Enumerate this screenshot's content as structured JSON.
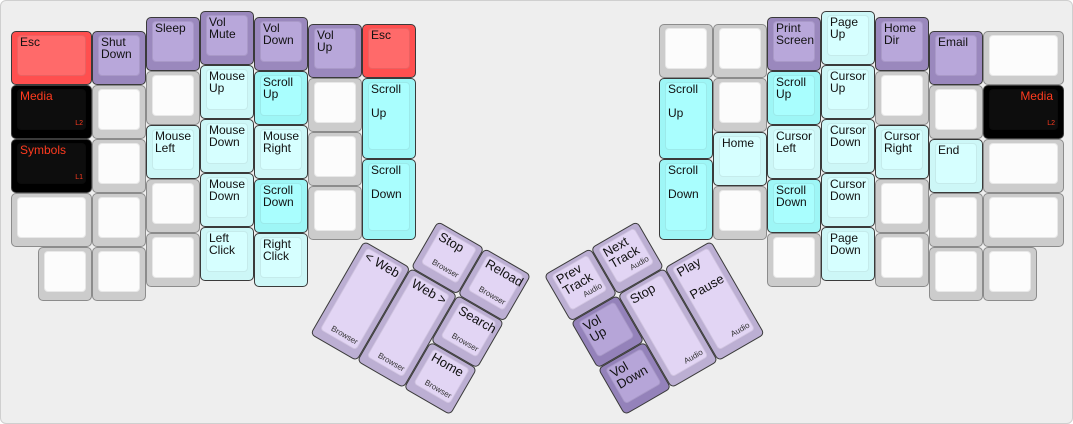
{
  "left_keys": [
    {
      "label": "Esc",
      "color": "red"
    },
    {
      "label": "Shut\nDown",
      "color": "purple"
    },
    {
      "label": "Sleep",
      "color": "purple"
    },
    {
      "label": "Vol\nMute",
      "color": "purple"
    },
    {
      "label": "Vol\nDown",
      "color": "purple"
    },
    {
      "label": "Vol\nUp",
      "color": "purple"
    },
    {
      "label": "Esc",
      "color": "red"
    },
    {
      "label": "Media",
      "sub": "L2",
      "color": "black"
    },
    {
      "label": "",
      "color": "blank"
    },
    {
      "label": "",
      "color": "blank"
    },
    {
      "label": "Mouse\nUp",
      "color": "lcyan"
    },
    {
      "label": "Scroll\nUp",
      "color": "cyan"
    },
    {
      "label": "",
      "color": "blank"
    },
    {
      "label": "Scroll\n\nUp",
      "color": "cyan"
    },
    {
      "label": "Symbols",
      "sub": "L1",
      "color": "black"
    },
    {
      "label": "",
      "color": "blank"
    },
    {
      "label": "Mouse\nLeft",
      "color": "lcyan"
    },
    {
      "label": "Mouse\nDown",
      "color": "lcyan"
    },
    {
      "label": "Mouse\nRight",
      "color": "lcyan"
    },
    {
      "label": "",
      "color": "blank"
    },
    {
      "label": "Scroll\n\nDown",
      "color": "cyan"
    },
    {
      "label": "",
      "color": "blank"
    },
    {
      "label": "",
      "color": "blank"
    },
    {
      "label": "",
      "color": "blank"
    },
    {
      "label": "Mouse\nDown",
      "color": "lcyan"
    },
    {
      "label": "Scroll\nDown",
      "color": "cyan"
    },
    {
      "label": "",
      "color": "blank"
    },
    {
      "label": "",
      "color": "blank"
    },
    {
      "label": "",
      "color": "blank"
    },
    {
      "label": "",
      "color": "blank"
    },
    {
      "label": "Left\nClick",
      "color": "lcyan"
    },
    {
      "label": "Right\nClick",
      "color": "lcyan"
    }
  ],
  "right_keys": [
    {
      "label": "",
      "color": "blank"
    },
    {
      "label": "",
      "color": "blank"
    },
    {
      "label": "Print\nScreen",
      "color": "purple"
    },
    {
      "label": "Page\nUp",
      "color": "lcyan"
    },
    {
      "label": "Home\nDir",
      "color": "purple"
    },
    {
      "label": "Email",
      "color": "purple"
    },
    {
      "label": "",
      "color": "blank"
    },
    {
      "label": "Scroll\n\nUp",
      "color": "cyan"
    },
    {
      "label": "",
      "color": "blank"
    },
    {
      "label": "Scroll\nUp",
      "color": "cyan"
    },
    {
      "label": "Cursor\nUp",
      "color": "lcyan"
    },
    {
      "label": "",
      "color": "blank"
    },
    {
      "label": "",
      "color": "blank"
    },
    {
      "label": "Media",
      "sub": "L2",
      "color": "black"
    },
    {
      "label": "Home",
      "color": "lcyan"
    },
    {
      "label": "Cursor\nLeft",
      "color": "lcyan"
    },
    {
      "label": "Cursor\nDown",
      "color": "lcyan"
    },
    {
      "label": "Cursor\nRight",
      "color": "lcyan"
    },
    {
      "label": "End",
      "color": "lcyan"
    },
    {
      "label": "",
      "color": "blank"
    },
    {
      "label": "Scroll\n\nDown",
      "color": "cyan"
    },
    {
      "label": "",
      "color": "blank"
    },
    {
      "label": "Scroll\nDown",
      "color": "cyan"
    },
    {
      "label": "Cursor\nDown",
      "color": "lcyan"
    },
    {
      "label": "",
      "color": "blank"
    },
    {
      "label": "",
      "color": "blank"
    },
    {
      "label": "",
      "color": "blank"
    },
    {
      "label": "",
      "color": "blank"
    },
    {
      "label": "Page\nDown",
      "color": "lcyan"
    },
    {
      "label": "",
      "color": "blank"
    },
    {
      "label": "",
      "color": "blank"
    },
    {
      "label": "",
      "color": "blank"
    }
  ],
  "left_thumb": [
    {
      "label": "Stop",
      "sub": "Browser",
      "color": "lpurple"
    },
    {
      "label": "Reload",
      "sub": "Browser",
      "color": "lpurple"
    },
    {
      "label": "< Web",
      "sub": "Browser",
      "color": "lpurple"
    },
    {
      "label": "Web >",
      "sub": "Browser",
      "color": "lpurple"
    },
    {
      "label": "Search",
      "sub": "Browser",
      "color": "lpurple"
    },
    {
      "label": "Home",
      "sub": "Browser",
      "color": "lpurple"
    }
  ],
  "right_thumb": [
    {
      "label": "Prev\nTrack",
      "sub": "Audio",
      "color": "lpurple"
    },
    {
      "label": "Next\nTrack",
      "sub": "Audio",
      "color": "lpurple"
    },
    {
      "label": "Vol\nUp",
      "color": "dpurple"
    },
    {
      "label": "Vol\nDown",
      "color": "dpurple"
    },
    {
      "label": "Stop",
      "sub": "Audio",
      "color": "lpurple"
    },
    {
      "label": "Play\n\nPause",
      "sub": "Audio",
      "color": "lpurple"
    }
  ],
  "colors": {
    "red": "#ff6a6a",
    "purple": "#b8a7da",
    "lpurple": "#e2d5f4",
    "dpurple": "#b6a5d8",
    "cyan": "#a9fefe",
    "lcyan": "#d6ffff",
    "blank": "#fcfcfc",
    "black": "#0d0d0d",
    "legend_red": "#ff3b1f"
  }
}
